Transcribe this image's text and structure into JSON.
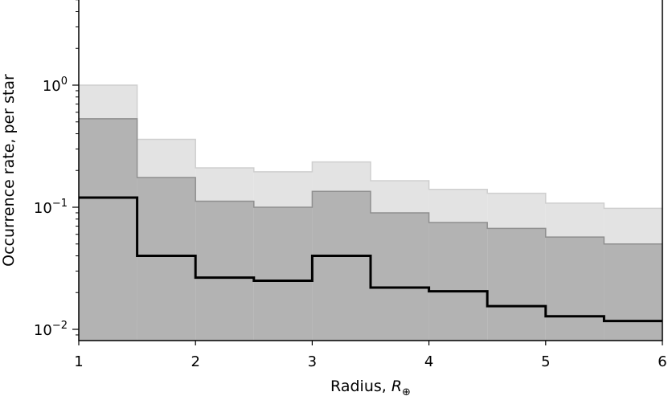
{
  "chart_data": {
    "type": "area",
    "xlabel": "Radius, ",
    "xlabel_symbol": "R",
    "xlabel_subscript": "⊕",
    "ylabel": "Occurrence rate, per star",
    "yscale": "log",
    "xlim": [
      1,
      6
    ],
    "ylim": [
      0.008,
      5
    ],
    "grid": false,
    "x_ticks": [
      1,
      2,
      3,
      4,
      5,
      6
    ],
    "x_tick_labels": [
      "1",
      "2",
      "3",
      "4",
      "5",
      "6"
    ],
    "y_ticks": [
      {
        "value": 1,
        "base": "10",
        "exp": "0"
      },
      {
        "value": 0.1,
        "base": "10",
        "exp": "−1"
      },
      {
        "value": 0.01,
        "base": "10",
        "exp": "−2"
      }
    ],
    "bin_edges": [
      1,
      1.5,
      2,
      2.5,
      3,
      3.5,
      4,
      4.5,
      5,
      5.5,
      6
    ],
    "series": [
      {
        "role": "outer-band",
        "color": "#e3e3e3",
        "upper": [
          1.0,
          0.36,
          0.21,
          0.195,
          0.235,
          0.165,
          0.14,
          0.13,
          0.108,
          0.098
        ],
        "lower": [
          0.012,
          0.008,
          0.008,
          0.008,
          0.008,
          0.008,
          0.008,
          0.008,
          0.008,
          0.008
        ]
      },
      {
        "role": "inner-band",
        "color": "#b3b3b3",
        "upper": [
          0.53,
          0.175,
          0.112,
          0.1,
          0.135,
          0.09,
          0.075,
          0.067,
          0.057,
          0.05
        ],
        "lower": [
          0.008,
          0.008,
          0.008,
          0.008,
          0.008,
          0.008,
          0.008,
          0.008,
          0.008,
          0.008
        ]
      },
      {
        "role": "median-step",
        "color": "#000000",
        "values": [
          0.12,
          0.04,
          0.0265,
          0.025,
          0.04,
          0.022,
          0.0205,
          0.0155,
          0.0128,
          0.0117
        ]
      }
    ]
  }
}
